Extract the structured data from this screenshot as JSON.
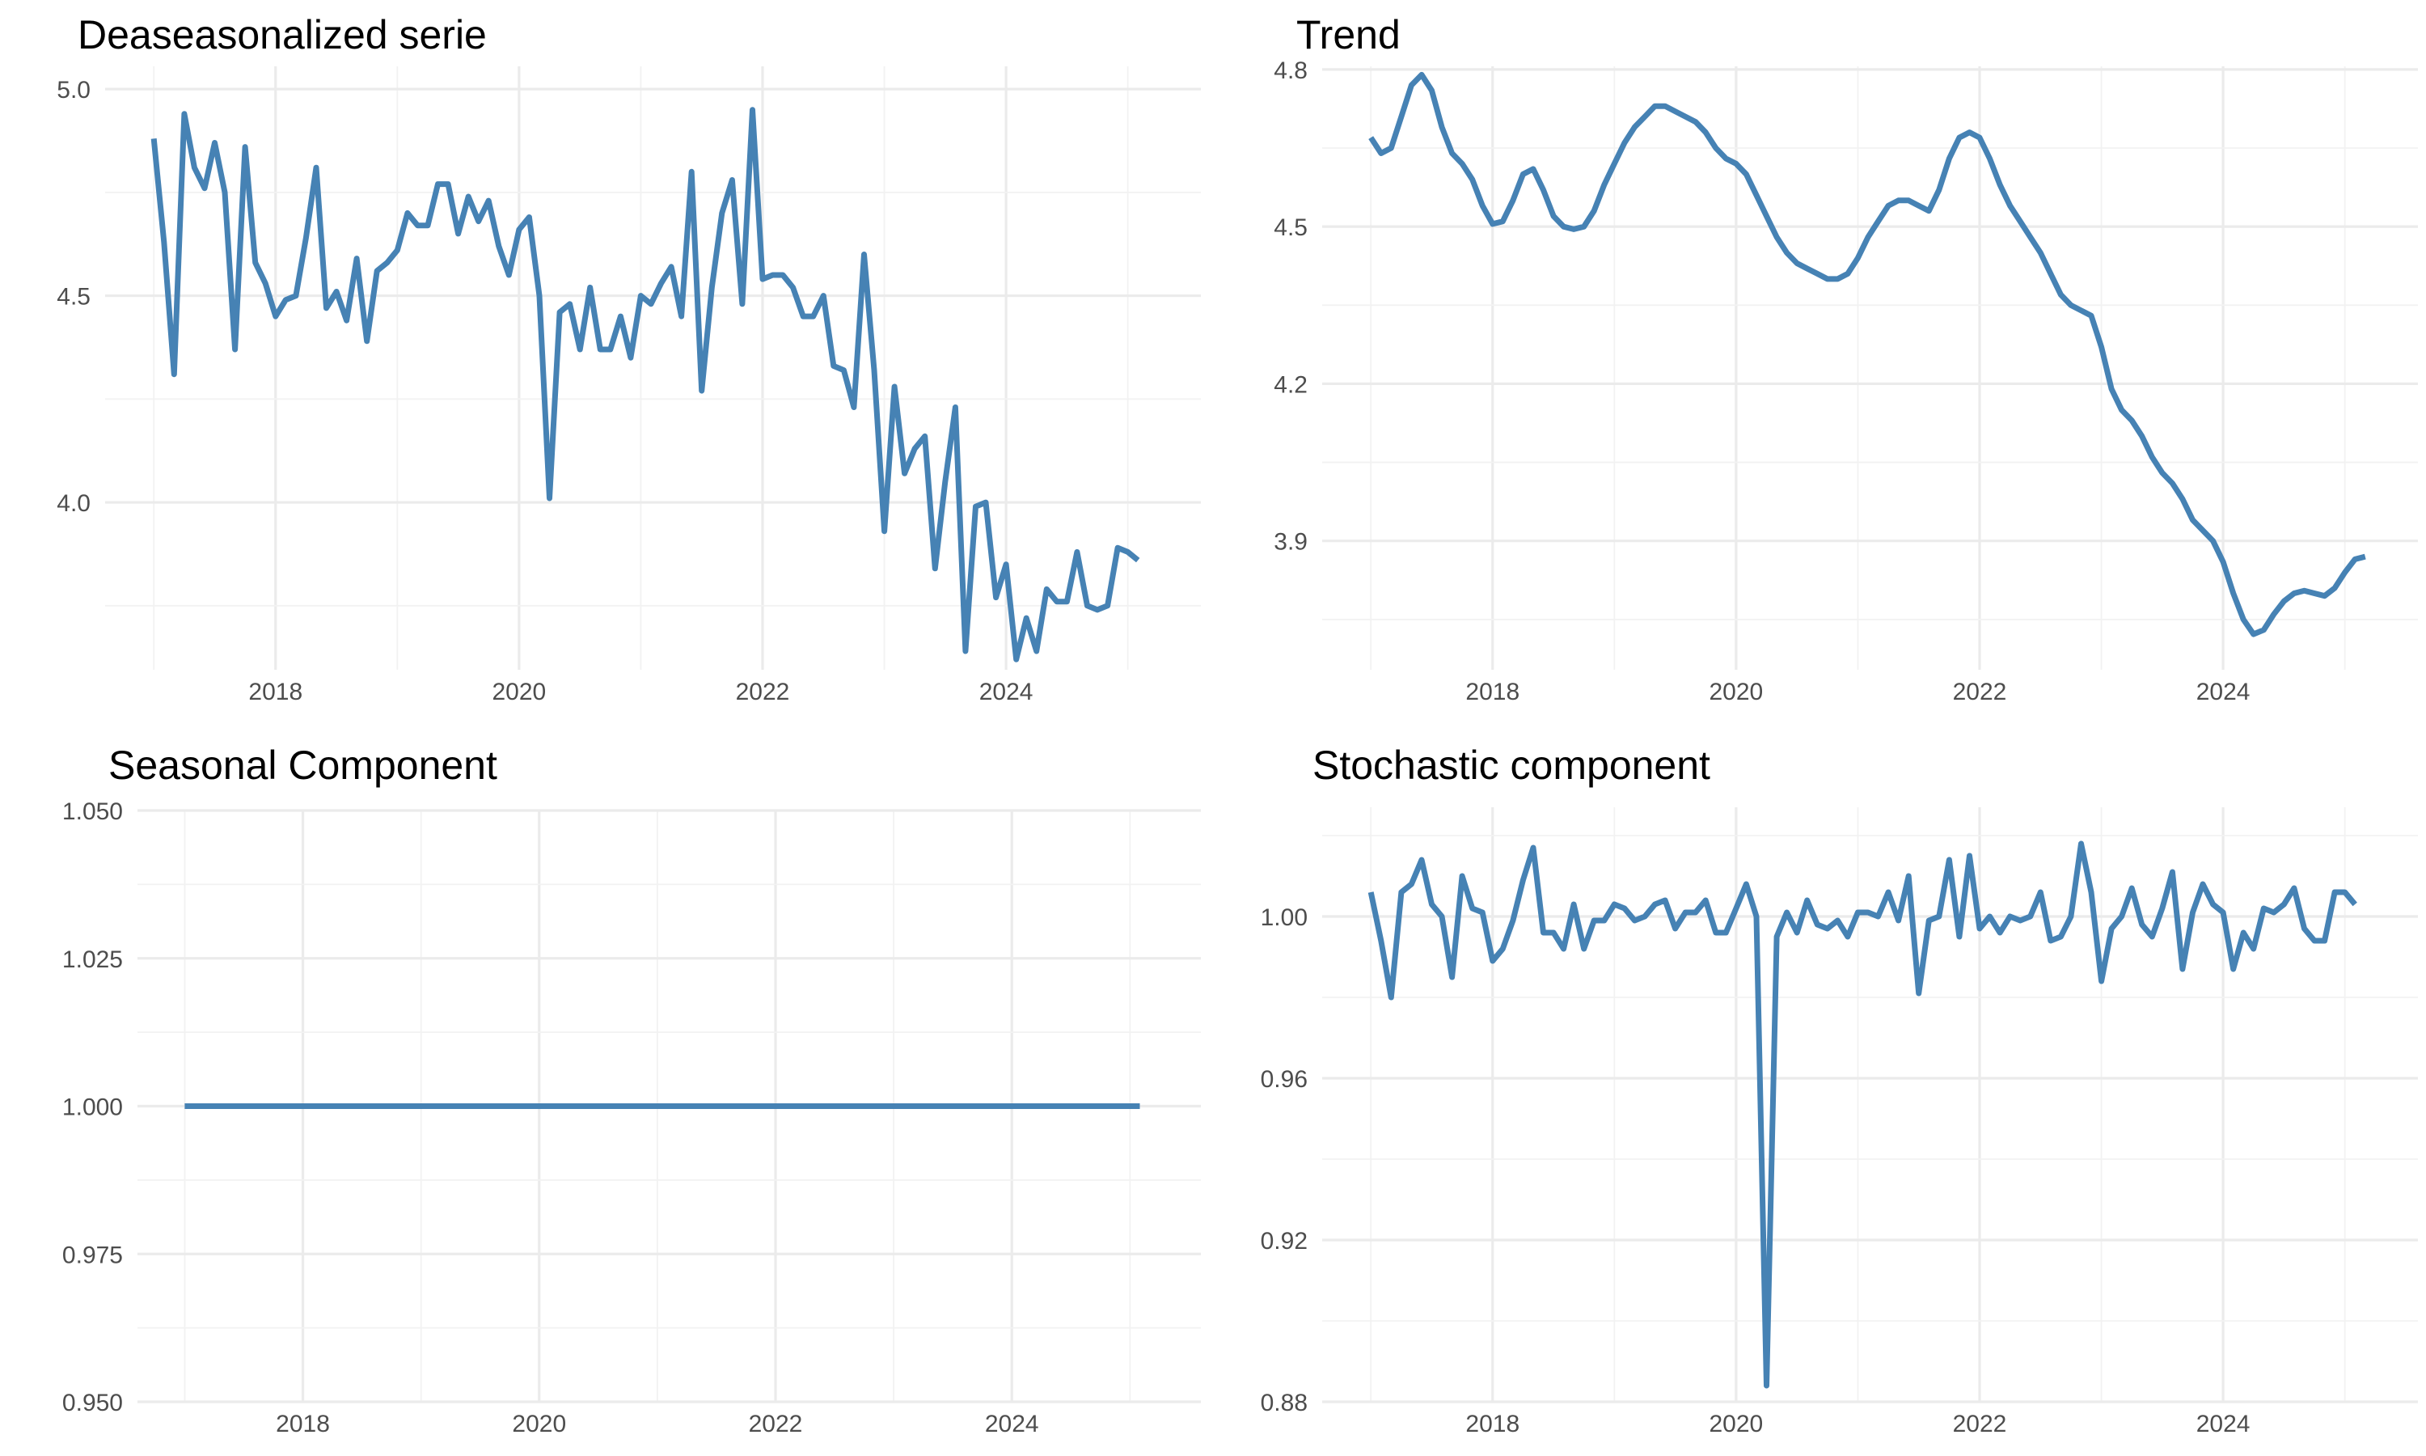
{
  "colors": {
    "line": "#4682b4",
    "grid_major": "#ebebeb",
    "grid_minor": "#f2f2f2",
    "tick_text": "#4d4d4d"
  },
  "chart_data": [
    {
      "type": "line",
      "title": "Deaseasonalized serie",
      "x_start": 2017.0,
      "x_step": 0.08333333,
      "xlim": [
        2016.6,
        2025.6
      ],
      "ylim": [
        3.595,
        5.055
      ],
      "x_ticks": [
        2018,
        2020,
        2022,
        2024
      ],
      "x_tick_labels": [
        "2018",
        "2020",
        "2022",
        "2024"
      ],
      "y_ticks": [
        4.0,
        4.5,
        5.0
      ],
      "y_tick_labels": [
        "4.0",
        "4.5",
        "5.0"
      ],
      "grid": true,
      "values": [
        4.88,
        4.63,
        4.31,
        4.94,
        4.81,
        4.76,
        4.87,
        4.75,
        4.37,
        4.86,
        4.58,
        4.53,
        4.45,
        4.49,
        4.5,
        4.64,
        4.81,
        4.47,
        4.51,
        4.44,
        4.59,
        4.39,
        4.56,
        4.58,
        4.61,
        4.7,
        4.67,
        4.67,
        4.77,
        4.77,
        4.65,
        4.74,
        4.68,
        4.73,
        4.62,
        4.55,
        4.66,
        4.69,
        4.5,
        4.01,
        4.46,
        4.48,
        4.37,
        4.52,
        4.37,
        4.37,
        4.45,
        4.35,
        4.5,
        4.48,
        4.53,
        4.57,
        4.45,
        4.8,
        4.27,
        4.52,
        4.7,
        4.78,
        4.48,
        4.95,
        4.54,
        4.55,
        4.55,
        4.52,
        4.45,
        4.45,
        4.5,
        4.33,
        4.32,
        4.23,
        4.6,
        4.32,
        3.93,
        4.28,
        4.07,
        4.13,
        4.16,
        3.84,
        4.05,
        4.23,
        3.64,
        3.99,
        4.0,
        3.77,
        3.85,
        3.62,
        3.72,
        3.64,
        3.79,
        3.76,
        3.76,
        3.88,
        3.75,
        3.74,
        3.75,
        3.89,
        3.88,
        3.86
      ]
    },
    {
      "type": "line",
      "title": "Trend",
      "x_start": 2017.0,
      "x_step": 0.08333333,
      "xlim": [
        2016.6,
        2025.6
      ],
      "ylim": [
        3.654,
        4.806
      ],
      "x_ticks": [
        2018,
        2020,
        2022,
        2024
      ],
      "x_tick_labels": [
        "2018",
        "2020",
        "2022",
        "2024"
      ],
      "y_ticks": [
        3.9,
        4.2,
        4.5,
        4.8
      ],
      "y_tick_labels": [
        "3.9",
        "4.2",
        "4.5",
        "4.8"
      ],
      "grid": true,
      "values": [
        4.67,
        4.64,
        4.65,
        4.71,
        4.77,
        4.79,
        4.76,
        4.69,
        4.64,
        4.62,
        4.59,
        4.54,
        4.505,
        4.51,
        4.55,
        4.6,
        4.61,
        4.57,
        4.52,
        4.5,
        4.495,
        4.5,
        4.53,
        4.58,
        4.62,
        4.66,
        4.69,
        4.71,
        4.73,
        4.73,
        4.72,
        4.71,
        4.7,
        4.68,
        4.65,
        4.63,
        4.62,
        4.6,
        4.56,
        4.52,
        4.48,
        4.45,
        4.43,
        4.42,
        4.41,
        4.4,
        4.4,
        4.41,
        4.44,
        4.48,
        4.51,
        4.54,
        4.55,
        4.55,
        4.54,
        4.53,
        4.57,
        4.63,
        4.67,
        4.68,
        4.67,
        4.63,
        4.58,
        4.54,
        4.51,
        4.48,
        4.45,
        4.41,
        4.37,
        4.35,
        4.34,
        4.33,
        4.27,
        4.19,
        4.15,
        4.13,
        4.1,
        4.06,
        4.03,
        4.01,
        3.98,
        3.94,
        3.92,
        3.9,
        3.86,
        3.8,
        3.75,
        3.722,
        3.73,
        3.76,
        3.785,
        3.8,
        3.805,
        3.8,
        3.795,
        3.81,
        3.84,
        3.865,
        3.87
      ]
    },
    {
      "type": "line",
      "title": "Seasonal Component",
      "x_start": 2017.0,
      "x_step": 0.08333333,
      "xlim": [
        2016.6,
        2025.6
      ],
      "ylim": [
        0.95,
        1.05
      ],
      "x_ticks": [
        2018,
        2020,
        2022,
        2024
      ],
      "x_tick_labels": [
        "2018",
        "2020",
        "2022",
        "2024"
      ],
      "y_ticks": [
        0.95,
        0.975,
        1.0,
        1.025,
        1.05
      ],
      "y_tick_labels": [
        "0.950",
        "0.975",
        "1.000",
        "1.025",
        "1.050"
      ],
      "grid": true,
      "values": [
        1.0,
        1.0,
        1.0,
        1.0,
        1.0,
        1.0,
        1.0,
        1.0,
        1.0,
        1.0,
        1.0,
        1.0,
        1.0,
        1.0,
        1.0,
        1.0,
        1.0,
        1.0,
        1.0,
        1.0,
        1.0,
        1.0,
        1.0,
        1.0,
        1.0,
        1.0,
        1.0,
        1.0,
        1.0,
        1.0,
        1.0,
        1.0,
        1.0,
        1.0,
        1.0,
        1.0,
        1.0,
        1.0,
        1.0,
        1.0,
        1.0,
        1.0,
        1.0,
        1.0,
        1.0,
        1.0,
        1.0,
        1.0,
        1.0,
        1.0,
        1.0,
        1.0,
        1.0,
        1.0,
        1.0,
        1.0,
        1.0,
        1.0,
        1.0,
        1.0,
        1.0,
        1.0,
        1.0,
        1.0,
        1.0,
        1.0,
        1.0,
        1.0,
        1.0,
        1.0,
        1.0,
        1.0,
        1.0,
        1.0,
        1.0,
        1.0,
        1.0,
        1.0,
        1.0,
        1.0,
        1.0,
        1.0,
        1.0,
        1.0,
        1.0,
        1.0,
        1.0,
        1.0,
        1.0,
        1.0,
        1.0,
        1.0,
        1.0,
        1.0,
        1.0,
        1.0,
        1.0,
        1.0
      ]
    },
    {
      "type": "line",
      "title": "Stochastic component",
      "x_start": 2017.0,
      "x_step": 0.08333333,
      "xlim": [
        2016.6,
        2025.6
      ],
      "ylim": [
        0.88,
        1.027
      ],
      "x_ticks": [
        2018,
        2020,
        2022,
        2024
      ],
      "x_tick_labels": [
        "2018",
        "2020",
        "2022",
        "2024"
      ],
      "y_ticks": [
        0.88,
        0.92,
        0.96,
        1.0
      ],
      "y_tick_labels": [
        "0.88",
        "0.92",
        "0.96",
        "1.00"
      ],
      "grid": true,
      "values": [
        1.006,
        0.994,
        0.98,
        1.006,
        1.008,
        1.014,
        1.003,
        1.0,
        0.985,
        1.01,
        1.002,
        1.001,
        0.989,
        0.992,
        0.999,
        1.009,
        1.017,
        0.996,
        0.996,
        0.992,
        1.003,
        0.992,
        0.999,
        0.999,
        1.003,
        1.002,
        0.999,
        1.0,
        1.003,
        1.004,
        0.997,
        1.001,
        1.001,
        1.004,
        0.996,
        0.996,
        1.002,
        1.008,
        1.0,
        0.884,
        0.995,
        1.001,
        0.996,
        1.004,
        0.998,
        0.997,
        0.999,
        0.995,
        1.001,
        1.001,
        1.0,
        1.006,
        0.999,
        1.01,
        0.981,
        0.999,
        1.0,
        1.014,
        0.995,
        1.015,
        0.997,
        1.0,
        0.996,
        1.0,
        0.999,
        1.0,
        1.006,
        0.994,
        0.995,
        1.0,
        1.018,
        1.006,
        0.984,
        0.997,
        1.0,
        1.007,
        0.998,
        0.995,
        1.002,
        1.011,
        0.987,
        1.001,
        1.008,
        1.003,
        1.001,
        0.987,
        0.996,
        0.992,
        1.002,
        1.001,
        1.003,
        1.007,
        0.997,
        0.994,
        0.994,
        1.006,
        1.006,
        1.003
      ]
    }
  ]
}
